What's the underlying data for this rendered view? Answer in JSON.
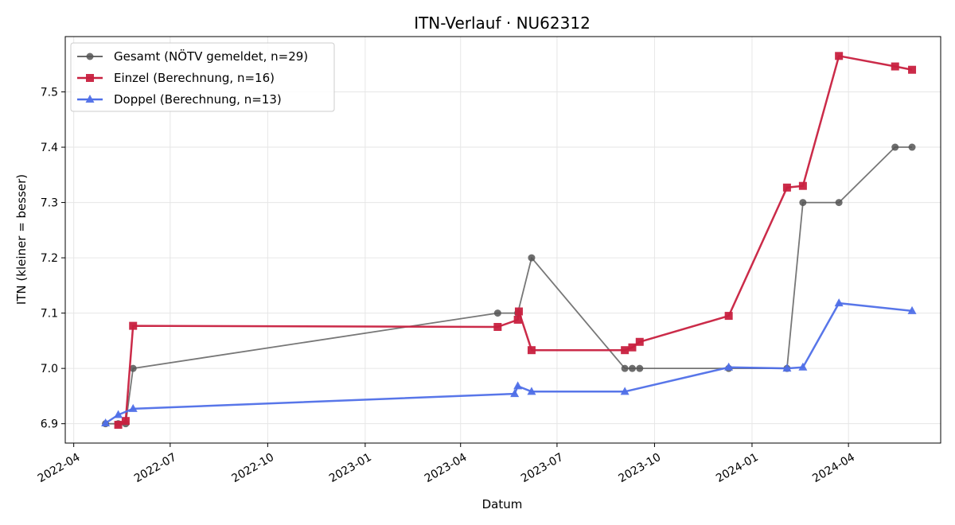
{
  "chart_data": {
    "type": "line",
    "title": "ITN-Verlauf · NU62312",
    "xlabel": "Datum",
    "ylabel": "ITN  (kleiner = besser)",
    "xlim": [
      "2022-03-24",
      "2024-06-27"
    ],
    "ylim": [
      6.865,
      7.6
    ],
    "x_ticks": [
      "2022-04",
      "2022-07",
      "2022-10",
      "2023-01",
      "2023-04",
      "2023-07",
      "2023-10",
      "2024-01",
      "2024-04"
    ],
    "y_ticks": [
      6.9,
      7.0,
      7.1,
      7.2,
      7.3,
      7.4,
      7.5
    ],
    "grid": true,
    "legend_position": "top-left",
    "series": [
      {
        "name": "Gesamt (NÖTV gemeldet, n=29)",
        "color": "#555555",
        "marker": "circle",
        "points": [
          [
            "2022-05-01",
            6.9
          ],
          [
            "2022-05-13",
            6.9
          ],
          [
            "2022-05-20",
            6.9
          ],
          [
            "2022-05-27",
            7.0
          ],
          [
            "2023-05-06",
            7.1
          ],
          [
            "2023-05-25",
            7.1
          ],
          [
            "2023-06-07",
            7.2
          ],
          [
            "2023-09-03",
            7.0
          ],
          [
            "2023-09-10",
            7.0
          ],
          [
            "2023-09-17",
            7.0
          ],
          [
            "2023-12-10",
            7.0
          ],
          [
            "2024-02-03",
            7.0
          ],
          [
            "2024-02-18",
            7.3
          ],
          [
            "2024-03-23",
            7.3
          ],
          [
            "2024-05-15",
            7.4
          ],
          [
            "2024-05-31",
            7.4
          ]
        ]
      },
      {
        "name": "Einzel (Berechnung, n=16)",
        "color": "#c8203f",
        "marker": "square",
        "points": [
          [
            "2022-05-13",
            6.898
          ],
          [
            "2022-05-20",
            6.905
          ],
          [
            "2022-05-27",
            7.077
          ],
          [
            "2023-05-06",
            7.075
          ],
          [
            "2023-05-25",
            7.088
          ],
          [
            "2023-05-26",
            7.103
          ],
          [
            "2023-06-07",
            7.033
          ],
          [
            "2023-09-03",
            7.033
          ],
          [
            "2023-09-10",
            7.038
          ],
          [
            "2023-09-17",
            7.048
          ],
          [
            "2023-12-10",
            7.095
          ],
          [
            "2024-02-03",
            7.327
          ],
          [
            "2024-02-18",
            7.33
          ],
          [
            "2024-03-23",
            7.565
          ],
          [
            "2024-05-15",
            7.546
          ],
          [
            "2024-05-31",
            7.54
          ]
        ]
      },
      {
        "name": "Doppel (Berechnung, n=13)",
        "color": "#4f6fe8",
        "marker": "triangle",
        "points": [
          [
            "2022-05-01",
            6.901
          ],
          [
            "2022-05-13",
            6.916
          ],
          [
            "2022-05-27",
            6.927
          ],
          [
            "2023-05-22",
            6.954
          ],
          [
            "2023-05-25",
            6.968
          ],
          [
            "2023-06-07",
            6.958
          ],
          [
            "2023-09-03",
            6.958
          ],
          [
            "2023-12-10",
            7.002
          ],
          [
            "2024-02-03",
            7.0
          ],
          [
            "2024-02-18",
            7.002
          ],
          [
            "2024-03-23",
            7.118
          ],
          [
            "2024-05-31",
            7.104
          ]
        ]
      }
    ]
  }
}
